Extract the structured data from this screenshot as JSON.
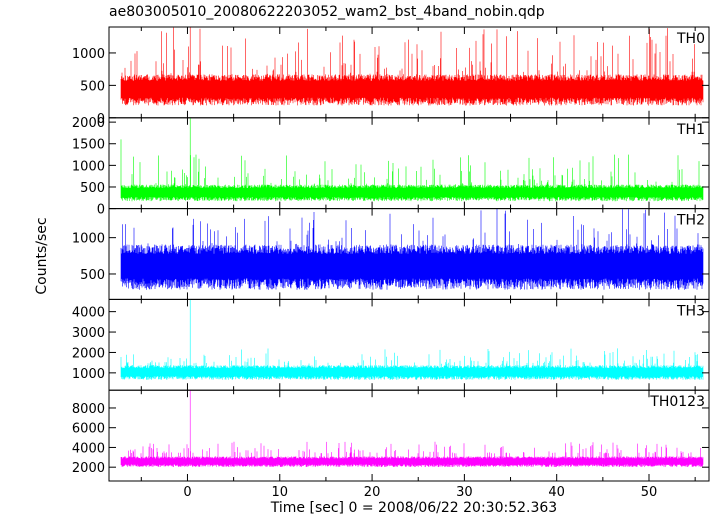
{
  "chart_data": {
    "type": "line",
    "title": "ae803005010_20080622203052_wam2_bst_4band_nobin.qdp",
    "xlabel": "Time [sec] 0 = 2008/06/22 20:30:52.363",
    "ylabel": "Counts/sec",
    "xlim": [
      -8.5,
      56.5
    ],
    "xticks": [
      0,
      10,
      20,
      30,
      40,
      50
    ],
    "grid": false,
    "panels": [
      {
        "name": "TH0",
        "color": "#ff0000",
        "ylim": [
          0,
          1400
        ],
        "yticks": [
          0,
          500,
          1000
        ],
        "base": 450,
        "spread": 200,
        "peak_min": 650,
        "peak_max": 1400,
        "spikes": [
          {
            "x": 0.3,
            "y": 1400
          },
          {
            "x": 0.1,
            "y": 1100
          }
        ],
        "seed": 11
      },
      {
        "name": "TH1",
        "color": "#00ff00",
        "ylim": [
          0,
          2100
        ],
        "yticks": [
          0,
          500,
          1000,
          1500,
          2000
        ],
        "base": 380,
        "spread": 160,
        "peak_min": 550,
        "peak_max": 1250,
        "spikes": [
          {
            "x": 0.3,
            "y": 2100
          },
          {
            "x": -7.2,
            "y": 1600
          }
        ],
        "seed": 23
      },
      {
        "name": "TH2",
        "color": "#0000ff",
        "ylim": [
          150,
          1400
        ],
        "yticks": [
          500,
          1000
        ],
        "base": 620,
        "spread": 260,
        "peak_min": 850,
        "peak_max": 1400,
        "spikes": [],
        "seed": 37
      },
      {
        "name": "TH3",
        "color": "#00ffff",
        "ylim": [
          150,
          4600
        ],
        "yticks": [
          1000,
          2000,
          3000,
          4000
        ],
        "base": 1050,
        "spread": 300,
        "peak_min": 1450,
        "peak_max": 2200,
        "spikes": [
          {
            "x": 0.3,
            "y": 4600
          }
        ],
        "seed": 53
      },
      {
        "name": "TH0123",
        "color": "#ff00ff",
        "ylim": [
          600,
          9800
        ],
        "yticks": [
          2000,
          4000,
          6000,
          8000
        ],
        "base": 2600,
        "spread": 450,
        "peak_min": 3400,
        "peak_max": 4600,
        "spikes": [
          {
            "x": 0.3,
            "y": 9800
          }
        ],
        "seed": 71
      }
    ]
  }
}
